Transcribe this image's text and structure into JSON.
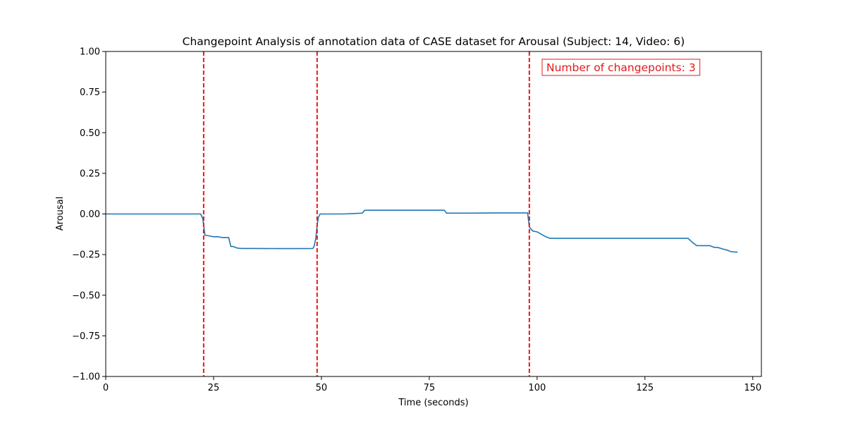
{
  "chart_data": {
    "type": "line",
    "title": "Changepoint Analysis of annotation data of CASE dataset for Arousal (Subject: 14, Video: 6)",
    "xlabel": "Time (seconds)",
    "ylabel": "Arousal",
    "xlim": [
      0,
      152
    ],
    "ylim": [
      -1.0,
      1.0
    ],
    "x_ticks": [
      0,
      25,
      50,
      75,
      100,
      125,
      150
    ],
    "y_ticks": [
      -1.0,
      -0.75,
      -0.5,
      -0.25,
      0.0,
      0.25,
      0.5,
      0.75,
      1.0
    ],
    "x_tick_labels": [
      "0",
      "25",
      "50",
      "75",
      "100",
      "125",
      "150"
    ],
    "y_tick_labels": [
      "−1.00",
      "−0.75",
      "−0.50",
      "−0.25",
      "0.00",
      "0.25",
      "0.50",
      "0.75",
      "1.00"
    ],
    "grid": false,
    "series": [
      {
        "color": "#1f77b4",
        "x": [
          0,
          22.0,
          22.5,
          23.0,
          24.0,
          25.0,
          26.0,
          27.0,
          28.5,
          29.0,
          29.5,
          30.5,
          31.5,
          35,
          40,
          45,
          48.0,
          48.3,
          48.7,
          49.0,
          49.3,
          49.7,
          50.0,
          55,
          59.5,
          60.0,
          60.5,
          65,
          70,
          75,
          78.5,
          79.0,
          85,
          90,
          97.8,
          98.2,
          99.0,
          100.0,
          101.0,
          102.0,
          103.0,
          105,
          110,
          120,
          130,
          135.0,
          136.0,
          137.0,
          138.0,
          140.0,
          141.0,
          142.0,
          143.0,
          144.0,
          145.0,
          146.5
        ],
        "y": [
          0.0,
          0.0,
          -0.03,
          -0.13,
          -0.135,
          -0.14,
          -0.14,
          -0.145,
          -0.145,
          -0.2,
          -0.2,
          -0.21,
          -0.212,
          -0.212,
          -0.213,
          -0.213,
          -0.212,
          -0.2,
          -0.15,
          -0.07,
          -0.02,
          0.0,
          0.0,
          0.0,
          0.005,
          0.022,
          0.023,
          0.023,
          0.023,
          0.023,
          0.023,
          0.005,
          0.005,
          0.006,
          0.006,
          -0.08,
          -0.105,
          -0.11,
          -0.125,
          -0.14,
          -0.15,
          -0.15,
          -0.15,
          -0.15,
          -0.15,
          -0.15,
          -0.175,
          -0.195,
          -0.195,
          -0.195,
          -0.205,
          -0.207,
          -0.215,
          -0.222,
          -0.232,
          -0.235
        ]
      }
    ],
    "changepoints": [
      22.7,
      49.0,
      98.2
    ],
    "changepoint_color": "#e31a1c",
    "annotation": {
      "text": "Number of changepoints: 3",
      "position": "top-right",
      "color": "#e31a1c"
    }
  }
}
